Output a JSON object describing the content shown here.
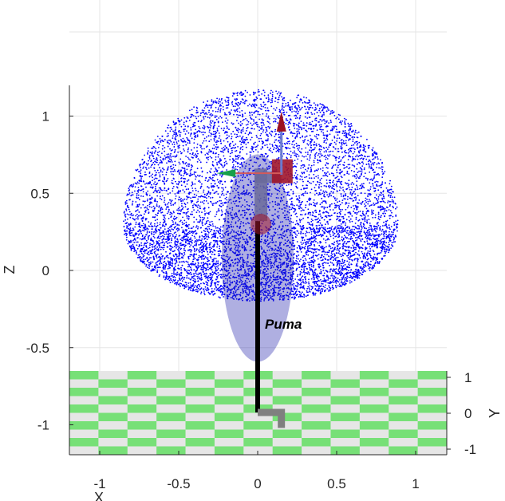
{
  "chart_data": {
    "type": "scatter",
    "title": "",
    "xlabel": "X",
    "ylabel": "Z",
    "zlabel": "Y",
    "xlim": [
      -1.2,
      1.2
    ],
    "zlim": [
      -1.2,
      1.2
    ],
    "ylim_depth": [
      -1.2,
      1.2
    ],
    "x_ticks": [
      "-1",
      "-0.5",
      "0",
      "0.5",
      "1"
    ],
    "z_ticks": [
      "-1",
      "-0.5",
      "0",
      "0.5",
      "1"
    ],
    "y_ticks": [
      "-1",
      "0",
      "1"
    ],
    "grid": true,
    "workspace_cloud": {
      "description_shape": "hemisphere",
      "x_range": [
        -0.87,
        0.87
      ],
      "z_range": [
        -0.28,
        1.17
      ],
      "color": "#0000ff",
      "point_count": 9000
    },
    "robot": {
      "name": "Puma",
      "base_x": 0.0,
      "base_z": -0.92,
      "link_top_z": 0.32,
      "shoulder_z": 0.32,
      "elbow_z": 0.58,
      "tool_x": 0.15,
      "tool_z": 0.65,
      "colors": {
        "pedestal": "#000000",
        "arm": "#6a6a9a",
        "base_foot": "#7f7f7f",
        "joint": "#a0152a"
      }
    },
    "floor": {
      "colors": [
        "#77e077",
        "#e6e6e6"
      ],
      "y_range": [
        -1.2,
        1.2
      ]
    },
    "axis_color": "#262626",
    "grid_color": "#e5e5e5"
  }
}
